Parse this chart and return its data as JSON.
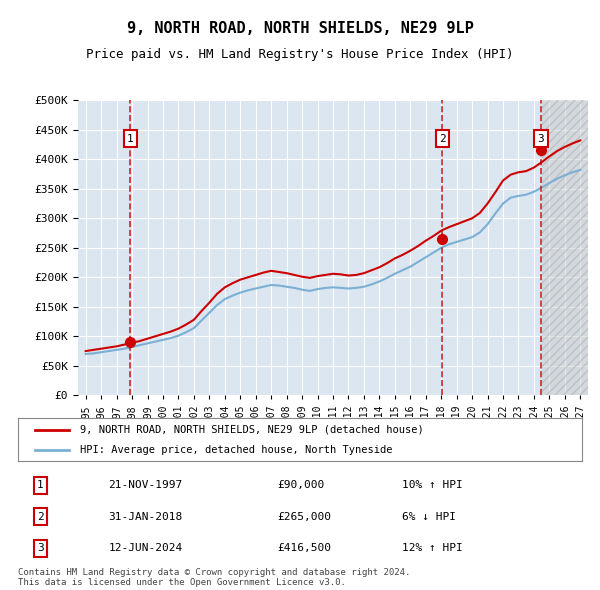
{
  "title": "9, NORTH ROAD, NORTH SHIELDS, NE29 9LP",
  "subtitle": "Price paid vs. HM Land Registry's House Price Index (HPI)",
  "ylim": [
    0,
    500000
  ],
  "yticks": [
    0,
    50000,
    100000,
    150000,
    200000,
    250000,
    300000,
    350000,
    400000,
    450000,
    500000
  ],
  "background_color": "#ffffff",
  "plot_bg_color": "#dce6f1",
  "grid_color": "#ffffff",
  "hpi_color": "#7ab0d4",
  "price_color": "#cc0000",
  "sale_prices": [
    90000,
    265000,
    416500
  ],
  "sale_labels": [
    "1",
    "2",
    "3"
  ],
  "sale_year_floats": [
    1997.88,
    2018.08,
    2024.45
  ],
  "sale_info": [
    {
      "label": "1",
      "date": "21-NOV-1997",
      "price": "£90,000",
      "change": "10% ↑ HPI"
    },
    {
      "label": "2",
      "date": "31-JAN-2018",
      "price": "£265,000",
      "change": "6% ↓ HPI"
    },
    {
      "label": "3",
      "date": "12-JUN-2024",
      "price": "£416,500",
      "change": "12% ↑ HPI"
    }
  ],
  "legend_entries": [
    "9, NORTH ROAD, NORTH SHIELDS, NE29 9LP (detached house)",
    "HPI: Average price, detached house, North Tyneside"
  ],
  "footer": "Contains HM Land Registry data © Crown copyright and database right 2024.\nThis data is licensed under the Open Government Licence v3.0.",
  "x_start_year": 1995,
  "x_end_year": 2027,
  "hpi_line": {
    "years": [
      1995,
      1995.5,
      1996,
      1996.5,
      1997,
      1997.5,
      1998,
      1998.5,
      1999,
      1999.5,
      2000,
      2000.5,
      2001,
      2001.5,
      2002,
      2002.5,
      2003,
      2003.5,
      2004,
      2004.5,
      2005,
      2005.5,
      2006,
      2006.5,
      2007,
      2007.5,
      2008,
      2008.5,
      2009,
      2009.5,
      2010,
      2010.5,
      2011,
      2011.5,
      2012,
      2012.5,
      2013,
      2013.5,
      2014,
      2014.5,
      2015,
      2015.5,
      2016,
      2016.5,
      2017,
      2017.5,
      2018,
      2018.5,
      2019,
      2019.5,
      2020,
      2020.5,
      2021,
      2021.5,
      2022,
      2022.5,
      2023,
      2023.5,
      2024,
      2024.5,
      2025,
      2025.5,
      2026,
      2026.5,
      2027
    ],
    "values": [
      70000,
      71000,
      73000,
      75000,
      77000,
      79000,
      82000,
      85000,
      88000,
      91000,
      94000,
      97000,
      101000,
      107000,
      114000,
      127000,
      140000,
      153000,
      163000,
      169000,
      174000,
      178000,
      181000,
      184000,
      187000,
      186000,
      184000,
      182000,
      179000,
      177000,
      180000,
      182000,
      183000,
      182000,
      181000,
      182000,
      184000,
      188000,
      193000,
      199000,
      206000,
      212000,
      218000,
      226000,
      234000,
      242000,
      250000,
      256000,
      260000,
      264000,
      268000,
      276000,
      290000,
      308000,
      325000,
      335000,
      338000,
      340000,
      345000,
      352000,
      360000,
      367000,
      373000,
      378000,
      382000
    ]
  },
  "price_line": {
    "years": [
      1995,
      1995.5,
      1996,
      1996.5,
      1997,
      1997.5,
      1998,
      1998.5,
      1999,
      1999.5,
      2000,
      2000.5,
      2001,
      2001.5,
      2002,
      2002.5,
      2003,
      2003.5,
      2004,
      2004.5,
      2005,
      2005.5,
      2006,
      2006.5,
      2007,
      2007.5,
      2008,
      2008.5,
      2009,
      2009.5,
      2010,
      2010.5,
      2011,
      2011.5,
      2012,
      2012.5,
      2013,
      2013.5,
      2014,
      2014.5,
      2015,
      2015.5,
      2016,
      2016.5,
      2017,
      2017.5,
      2018,
      2018.5,
      2019,
      2019.5,
      2020,
      2020.5,
      2021,
      2021.5,
      2022,
      2022.5,
      2023,
      2023.5,
      2024,
      2024.5,
      2025,
      2025.5,
      2026,
      2026.5,
      2027
    ],
    "values": [
      75000,
      77000,
      79000,
      81000,
      83000,
      86000,
      89000,
      92000,
      96000,
      100000,
      104000,
      108000,
      113000,
      120000,
      128000,
      143000,
      157000,
      172000,
      183000,
      190000,
      196000,
      200000,
      204000,
      208000,
      211000,
      209000,
      207000,
      204000,
      201000,
      199000,
      202000,
      204000,
      206000,
      205000,
      203000,
      204000,
      207000,
      212000,
      217000,
      224000,
      232000,
      238000,
      245000,
      253000,
      262000,
      270000,
      279000,
      285000,
      290000,
      295000,
      300000,
      309000,
      325000,
      344000,
      364000,
      374000,
      378000,
      380000,
      386000,
      395000,
      405000,
      414000,
      421000,
      427000,
      432000
    ]
  }
}
